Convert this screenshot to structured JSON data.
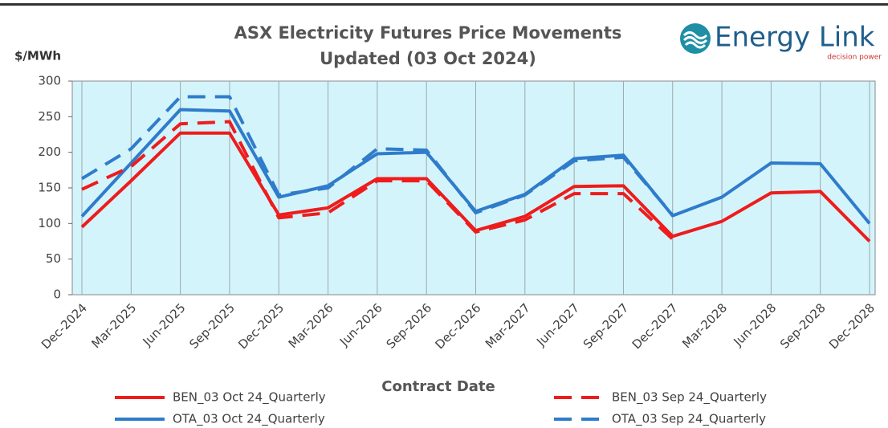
{
  "chart_data": {
    "type": "line",
    "title": "ASX Electricity Futures Price Movements",
    "subtitle": "Updated (03 Oct 2024)",
    "y_label": "$/MWh",
    "x_label": "Contract Date",
    "categories": [
      "Dec-2024",
      "Mar-2025",
      "Jun-2025",
      "Sep-2025",
      "Dec-2025",
      "Mar-2026",
      "Jun-2026",
      "Sep-2026",
      "Dec-2026",
      "Mar-2027",
      "Jun-2027",
      "Sep-2027",
      "Dec-2027",
      "Mar-2028",
      "Jun-2028",
      "Sep-2028",
      "Dec-2028"
    ],
    "series": [
      {
        "name": "BEN_03 Oct 24_Quarterly",
        "color": "#ee1c1c",
        "dashed": false,
        "values": [
          95,
          160,
          227,
          227,
          112,
          122,
          163,
          163,
          90,
          110,
          152,
          153,
          82,
          103,
          143,
          145,
          75
        ]
      },
      {
        "name": "OTA_03 Oct 24_Quarterly",
        "color": "#2f7ccb",
        "dashed": false,
        "values": [
          110,
          185,
          260,
          258,
          137,
          153,
          198,
          200,
          117,
          141,
          191,
          196,
          111,
          137,
          185,
          184,
          100
        ]
      },
      {
        "name": "BEN_03 Sep 24_Quarterly",
        "color": "#ee1c1c",
        "dashed": true,
        "values": [
          148,
          180,
          240,
          243,
          108,
          115,
          160,
          160,
          88,
          105,
          142,
          142,
          78,
          null,
          null,
          null,
          null
        ]
      },
      {
        "name": "OTA_03 Sep 24_Quarterly",
        "color": "#2f7ccb",
        "dashed": true,
        "values": [
          163,
          205,
          278,
          278,
          140,
          150,
          205,
          203,
          115,
          140,
          188,
          193,
          112,
          null,
          null,
          null,
          null
        ]
      }
    ],
    "ylim": [
      0,
      300
    ],
    "yticks": [
      0,
      50,
      100,
      150,
      200,
      250,
      300
    ],
    "grid": true,
    "legend": "bottom",
    "plot_background": "#d4f4fc"
  },
  "logo": {
    "name": "Energy Link",
    "tagline": "decision power"
  }
}
